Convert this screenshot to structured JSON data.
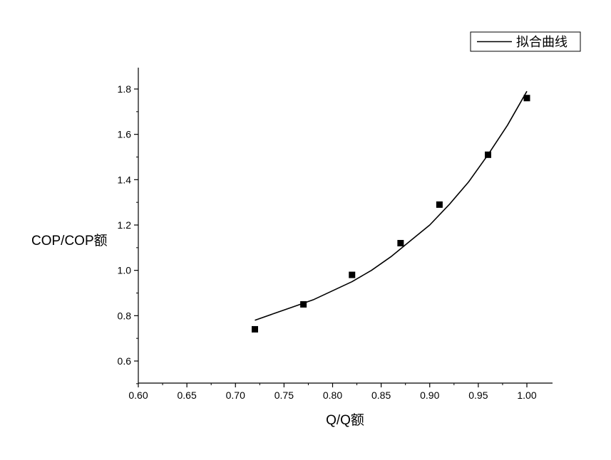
{
  "chart_data": {
    "type": "scatter",
    "xlabel": "Q/Q额",
    "ylabel": "COP/COP额",
    "xlim": [
      0.6,
      1.02
    ],
    "ylim": [
      0.5,
      1.9
    ],
    "x_ticks": [
      "0.60",
      "0.65",
      "0.70",
      "0.75",
      "0.80",
      "0.85",
      "0.90",
      "0.95",
      "1.00"
    ],
    "y_ticks": [
      "0.6",
      "0.8",
      "1.0",
      "1.2",
      "1.4",
      "1.6",
      "1.8"
    ],
    "grid": false,
    "legend_position": "top-right",
    "series": [
      {
        "kind": "points",
        "marker": "square",
        "x": [
          0.72,
          0.77,
          0.82,
          0.87,
          0.91,
          0.96,
          1.0
        ],
        "y": [
          0.74,
          0.85,
          0.98,
          1.12,
          1.29,
          1.51,
          1.76
        ]
      },
      {
        "name": "拟合曲线",
        "kind": "line",
        "x": [
          0.72,
          0.74,
          0.76,
          0.78,
          0.8,
          0.82,
          0.84,
          0.86,
          0.88,
          0.9,
          0.92,
          0.94,
          0.96,
          0.98,
          1.0
        ],
        "y": [
          0.78,
          0.81,
          0.84,
          0.87,
          0.91,
          0.95,
          1.0,
          1.06,
          1.13,
          1.2,
          1.29,
          1.39,
          1.51,
          1.64,
          1.79
        ]
      }
    ]
  }
}
